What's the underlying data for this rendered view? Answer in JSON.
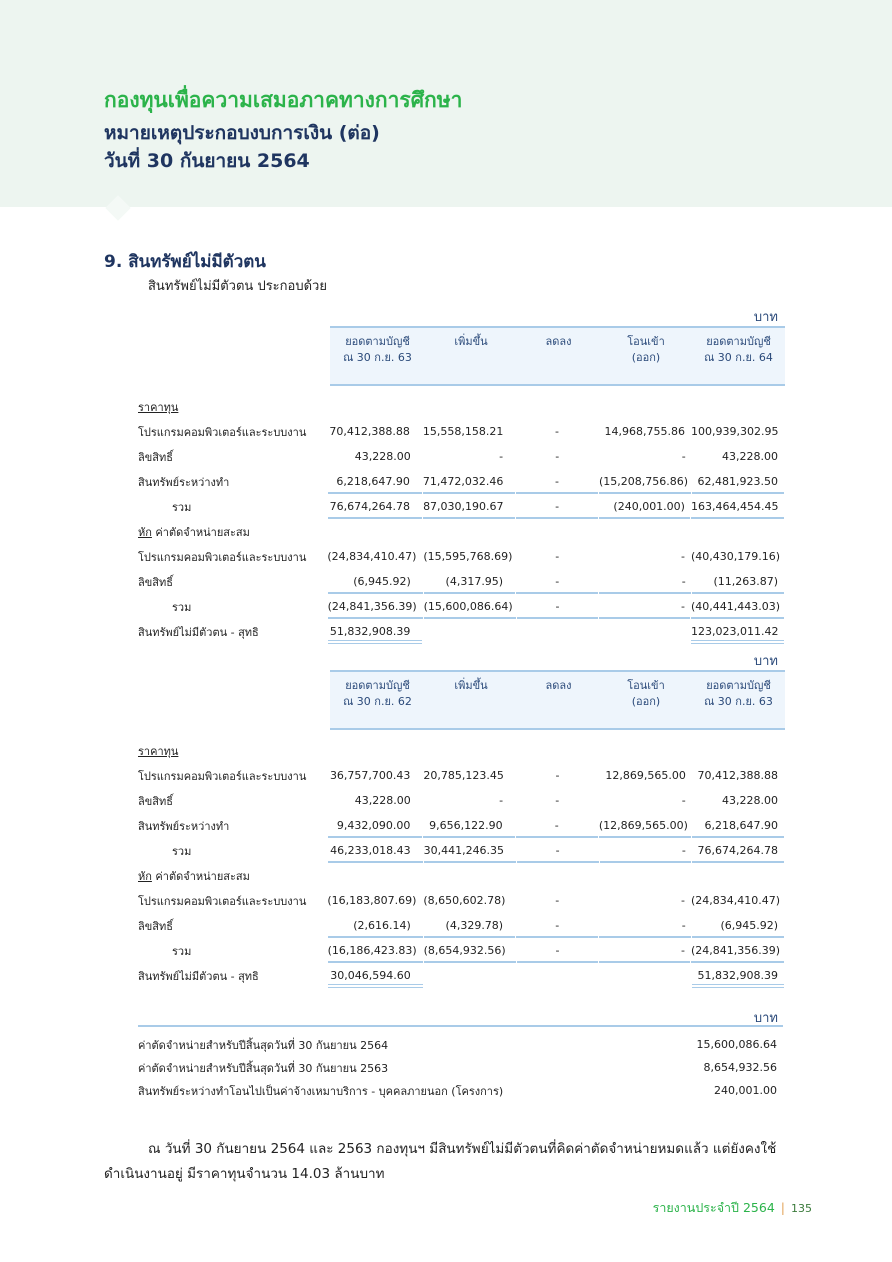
{
  "header": {
    "org": "กองทุนเพื่อความเสมอภาคทางการศึกษา",
    "subtitle": "หมายเหตุประกอบงบการเงิน (ต่อ)",
    "date": "วันที่ 30 กันยายน 2564"
  },
  "section": {
    "title": "9. สินทรัพย์ไม่มีตัวตน",
    "intro": "สินทรัพย์ไม่มีตัวตน  ประกอบด้วย"
  },
  "tables": [
    {
      "unit": "บาท",
      "headers": [
        "ยอดตามบัญชี\nณ 30 ก.ย. 63",
        "เพิ่มขึ้น",
        "ลดลง",
        "โอนเข้า\n(ออก)",
        "ยอดตามบัญชี\nณ 30 ก.ย. 64"
      ],
      "rows": [
        {
          "type": "section",
          "label": "ราคาทุน"
        },
        {
          "type": "item",
          "label": "โปรแกรมคอมพิวเตอร์และระบบงาน",
          "values": [
            "70,412,388.88",
            "15,558,158.21",
            "-",
            "14,968,755.86",
            "100,939,302.95"
          ]
        },
        {
          "type": "item",
          "label": "ลิขสิทธิ์",
          "values": [
            "43,228.00",
            "-",
            "-",
            "-",
            "43,228.00"
          ]
        },
        {
          "type": "item",
          "label": "สินทรัพย์ระหว่างทำ",
          "values": [
            "6,218,647.90",
            "71,472,032.46",
            "-",
            "(15,208,756.86)",
            "62,481,923.50"
          ]
        },
        {
          "type": "subtotal",
          "label": "รวม",
          "values": [
            "76,674,264.78",
            "87,030,190.67",
            "-",
            "(240,001.00)",
            "163,464,454.45"
          ]
        },
        {
          "type": "section",
          "prefix": "หัก",
          "label": "ค่าตัดจำหน่ายสะสม"
        },
        {
          "type": "item",
          "label": "โปรแกรมคอมพิวเตอร์และระบบงาน",
          "values": [
            "(24,834,410.47)",
            "(15,595,768.69)",
            "-",
            "-",
            "(40,430,179.16)"
          ]
        },
        {
          "type": "item",
          "label": "ลิขสิทธิ์",
          "values": [
            "(6,945.92)",
            "(4,317.95)",
            "-",
            "-",
            "(11,263.87)"
          ]
        },
        {
          "type": "subtotal",
          "label": "รวม",
          "values": [
            "(24,841,356.39)",
            "(15,600,086.64)",
            "-",
            "-",
            "(40,441,443.03)"
          ]
        },
        {
          "type": "net",
          "label": "สินทรัพย์ไม่มีตัวตน - สุทธิ",
          "values": [
            "51,832,908.39",
            "",
            "",
            "",
            "123,023,011.42"
          ]
        }
      ]
    },
    {
      "unit": "บาท",
      "headers": [
        "ยอดตามบัญชี\nณ 30 ก.ย. 62",
        "เพิ่มขึ้น",
        "ลดลง",
        "โอนเข้า\n(ออก)",
        "ยอดตามบัญชี\nณ 30 ก.ย. 63"
      ],
      "rows": [
        {
          "type": "section",
          "label": "ราคาทุน"
        },
        {
          "type": "item",
          "label": "โปรแกรมคอมพิวเตอร์และระบบงาน",
          "values": [
            "36,757,700.43",
            "20,785,123.45",
            "-",
            "12,869,565.00",
            "70,412,388.88"
          ]
        },
        {
          "type": "item",
          "label": "ลิขสิทธิ์",
          "values": [
            "43,228.00",
            "-",
            "-",
            "-",
            "43,228.00"
          ]
        },
        {
          "type": "item",
          "label": "สินทรัพย์ระหว่างทำ",
          "values": [
            "9,432,090.00",
            "9,656,122.90",
            "-",
            "(12,869,565.00)",
            "6,218,647.90"
          ]
        },
        {
          "type": "subtotal",
          "label": "รวม",
          "values": [
            "46,233,018.43",
            "30,441,246.35",
            "-",
            "-",
            "76,674,264.78"
          ]
        },
        {
          "type": "section",
          "prefix": "หัก",
          "label": "ค่าตัดจำหน่ายสะสม"
        },
        {
          "type": "item",
          "label": "โปรแกรมคอมพิวเตอร์และระบบงาน",
          "values": [
            "(16,183,807.69)",
            "(8,650,602.78)",
            "-",
            "-",
            "(24,834,410.47)"
          ]
        },
        {
          "type": "item",
          "label": "ลิขสิทธิ์",
          "values": [
            "(2,616.14)",
            "(4,329.78)",
            "-",
            "-",
            "(6,945.92)"
          ]
        },
        {
          "type": "subtotal",
          "label": "รวม",
          "values": [
            "(16,186,423.83)",
            "(8,654,932.56)",
            "-",
            "-",
            "(24,841,356.39)"
          ]
        },
        {
          "type": "net",
          "label": "สินทรัพย์ไม่มีตัวตน - สุทธิ",
          "values": [
            "30,046,594.60",
            "",
            "",
            "",
            "51,832,908.39"
          ]
        }
      ]
    }
  ],
  "summary": {
    "unit": "บาท",
    "rows": [
      {
        "label": "ค่าตัดจำหน่ายสำหรับปีสิ้นสุดวันที่ 30 กันยายน 2564",
        "value": "15,600,086.64"
      },
      {
        "label": "ค่าตัดจำหน่ายสำหรับปีสิ้นสุดวันที่ 30 กันยายน 2563",
        "value": "8,654,932.56"
      },
      {
        "label": "สินทรัพย์ระหว่างทำโอนไปเป็นค่าจ้างเหมาบริการ - บุคคลภายนอก (โครงการ)",
        "value": "240,001.00"
      }
    ]
  },
  "paragraph": "ณ วันที่ 30 กันยายน 2564 และ 2563 กองทุนฯ มีสินทรัพย์ไม่มีตัวตนที่คิดค่าตัดจำหน่ายหมดแล้ว  แต่ยังคงใช้ดำเนินงานอยู่  มีราคาทุนจำนวน 14.03 ล้านบาท",
  "footer": {
    "report": "รายงานประจำปี 2564",
    "separator": "|",
    "page": "135"
  },
  "colors": {
    "green": "#2bb34a",
    "navy": "#1f3560",
    "rule": "#a9cbe8",
    "header_bg": "#edf5f0"
  }
}
